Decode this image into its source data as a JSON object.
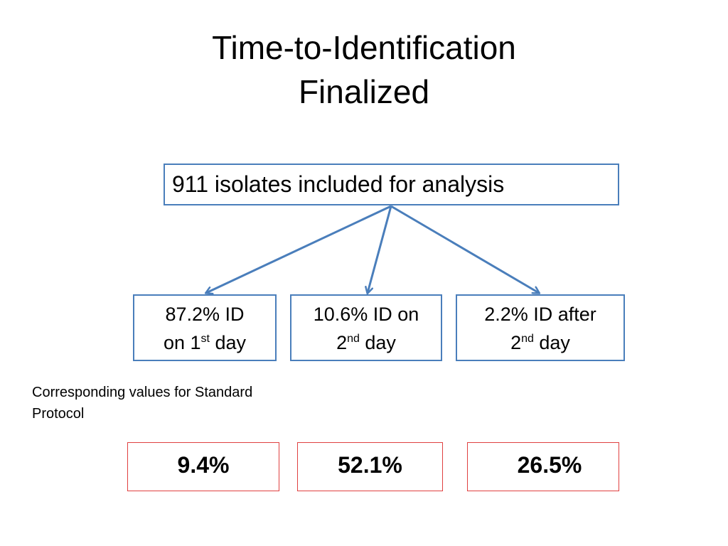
{
  "title": {
    "line1": "Time-to-Identification",
    "line2": "Finalized"
  },
  "root": {
    "label": "911 isolates included for analysis"
  },
  "branches": [
    {
      "line1": "87.2% ID",
      "line2_pre": "on 1",
      "line2_sup": "st",
      "line2_post": " day"
    },
    {
      "line1": "10.6% ID on",
      "line2_pre": "2",
      "line2_sup": "nd",
      "line2_post": " day"
    },
    {
      "line1": "2.2% ID after",
      "line2_pre": "2",
      "line2_sup": "nd",
      "line2_post": " day"
    }
  ],
  "caption": "Corresponding values for Standard Protocol",
  "standard_values": [
    "9.4%",
    "52.1%",
    "26.5%"
  ],
  "colors": {
    "box_border": "#4a7ebb",
    "arrow": "#4a7ebb",
    "value_border": "#e04040"
  }
}
